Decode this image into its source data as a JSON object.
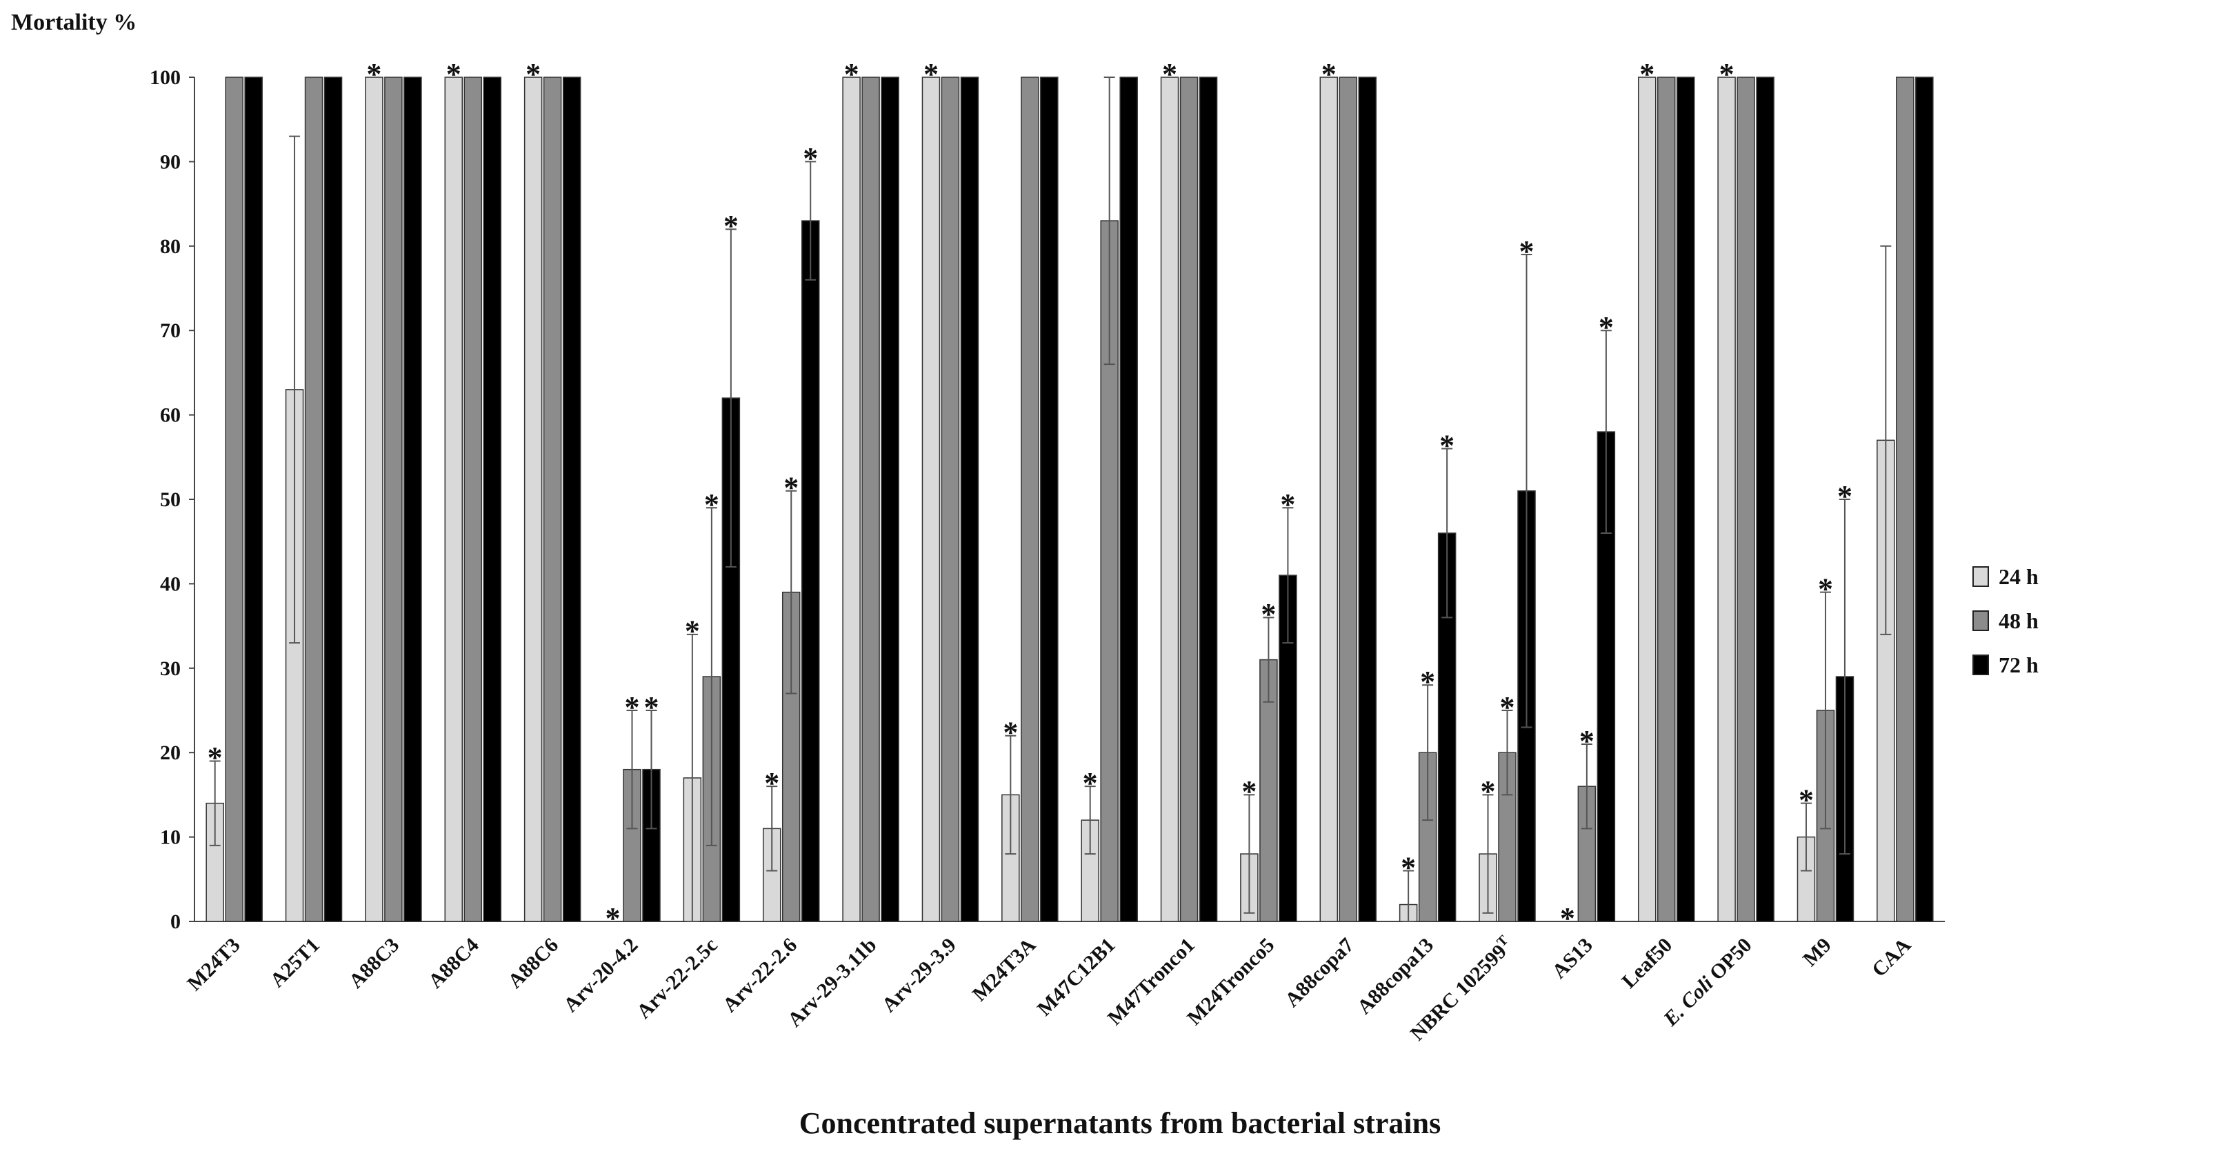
{
  "chart_data": {
    "type": "bar",
    "title": "",
    "ylabel": "Mortality %",
    "xlabel": "Concentrated supernatants from bacterial strains",
    "ylim": [
      0,
      100
    ],
    "yticks": [
      0,
      10,
      20,
      30,
      40,
      50,
      60,
      70,
      80,
      90,
      100
    ],
    "grid": false,
    "legend_position": "right",
    "categories": [
      "M24T3",
      "A25T1",
      "A88C3",
      "A88C4",
      "A88C6",
      "Arv-20-4.2",
      "Arv-22-2.5c",
      "Arv-22-2.6",
      "Arv-29-3.11b",
      "Arv-29-3.9",
      "M24T3A",
      "M47C12B1",
      "M47Tronco1",
      "M24Tronco5",
      "A88copa7",
      "A88copa13",
      "NBRC 102599T",
      "AS13",
      "Leaf50",
      "E. Coli OP50",
      "M9",
      "CAA"
    ],
    "series": [
      {
        "name": "24 h",
        "color": "#d9d9d9",
        "values": [
          14,
          63,
          100,
          100,
          100,
          0,
          17,
          11,
          100,
          100,
          15,
          12,
          100,
          8,
          100,
          2,
          8,
          0,
          100,
          100,
          10,
          57
        ],
        "errors": [
          5,
          30,
          0,
          0,
          0,
          0,
          17,
          5,
          0,
          0,
          7,
          4,
          0,
          7,
          0,
          4,
          7,
          0,
          0,
          0,
          4,
          23
        ],
        "significant": [
          true,
          false,
          true,
          true,
          true,
          true,
          true,
          true,
          true,
          true,
          true,
          true,
          true,
          true,
          true,
          true,
          true,
          true,
          true,
          true,
          true,
          false
        ]
      },
      {
        "name": "48 h",
        "color": "#8c8c8c",
        "values": [
          100,
          100,
          100,
          100,
          100,
          18,
          29,
          39,
          100,
          100,
          100,
          83,
          100,
          31,
          100,
          20,
          20,
          16,
          100,
          100,
          25,
          100
        ],
        "errors": [
          0,
          0,
          0,
          0,
          0,
          7,
          20,
          12,
          0,
          0,
          0,
          17,
          0,
          5,
          0,
          8,
          5,
          5,
          0,
          0,
          14,
          0
        ],
        "significant": [
          false,
          false,
          false,
          false,
          false,
          true,
          true,
          true,
          false,
          false,
          false,
          false,
          false,
          true,
          false,
          true,
          true,
          true,
          false,
          false,
          true,
          false
        ]
      },
      {
        "name": "72 h",
        "color": "#000000",
        "values": [
          100,
          100,
          100,
          100,
          100,
          18,
          62,
          83,
          100,
          100,
          100,
          100,
          100,
          41,
          100,
          46,
          51,
          58,
          100,
          100,
          29,
          100
        ],
        "errors": [
          0,
          0,
          0,
          0,
          0,
          7,
          20,
          7,
          0,
          0,
          0,
          0,
          0,
          8,
          0,
          10,
          28,
          12,
          0,
          0,
          21,
          0
        ],
        "significant": [
          false,
          false,
          false,
          false,
          false,
          true,
          true,
          true,
          false,
          false,
          false,
          false,
          false,
          true,
          false,
          true,
          true,
          true,
          false,
          false,
          true,
          false
        ]
      }
    ],
    "star_symbol": "*"
  }
}
